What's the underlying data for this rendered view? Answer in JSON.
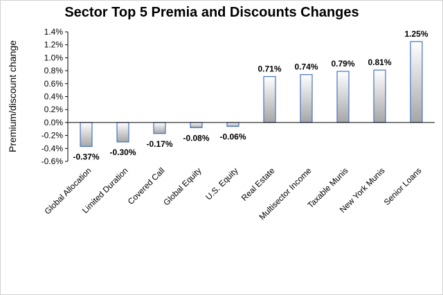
{
  "chart_data": {
    "type": "bar",
    "title": "Sector Top 5 Premia and Discounts Changes",
    "xlabel": "",
    "ylabel": "Premium/discount change",
    "ylim": [
      -0.6,
      1.4
    ],
    "yticks": [
      "-0.6%",
      "-0.4%",
      "-0.2%",
      "0.0%",
      "0.2%",
      "0.4%",
      "0.6%",
      "0.8%",
      "1.0%",
      "1.2%",
      "1.4%"
    ],
    "grid": false,
    "legend": "none",
    "categories": [
      "Global Allocation",
      "Limited Duration",
      "Covered Call",
      "Global Equity",
      "U.S. Equity",
      "Real Estate",
      "Multisector Income",
      "Taxable Munis",
      "New York Munis",
      "Senior Loans"
    ],
    "values": [
      -0.37,
      -0.3,
      -0.17,
      -0.08,
      -0.06,
      0.71,
      0.74,
      0.79,
      0.81,
      1.25
    ],
    "data_labels": [
      "-0.37%",
      "-0.30%",
      "-0.17%",
      "-0.08%",
      "-0.06%",
      "0.71%",
      "0.74%",
      "0.79%",
      "0.81%",
      "1.25%"
    ],
    "colors": {
      "bar_light": "#ffffff",
      "bar_dark": "#a6a6a6",
      "bar_border": "#4472c4",
      "axis": "#000000"
    }
  }
}
